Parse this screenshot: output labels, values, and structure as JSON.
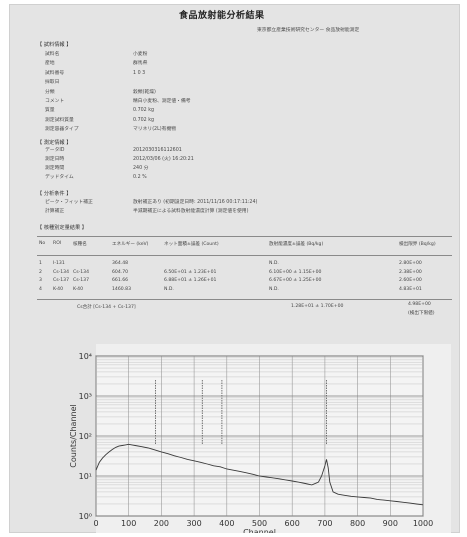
{
  "document": {
    "title": "食品放射能分析結果",
    "subtitle": "東京都立産業技術研究センター 食品放射能測定",
    "sample_section": {
      "heading": "【 試料情報 】",
      "rows": [
        {
          "key": "試料名",
          "value": "小麦粉"
        },
        {
          "key": "産地",
          "value": "群馬県"
        },
        {
          "key": "試料番号",
          "value": "1 0 3"
        },
        {
          "key": "採取日",
          "value": ""
        },
        {
          "key": "分類",
          "value": "穀類(乾燥)"
        },
        {
          "key": "コメント",
          "value": "精白小麦粉、測定値・備考"
        },
        {
          "key": "質量",
          "value": "0.702 kg"
        },
        {
          "key": "測定試料質量",
          "value": "0.702 kg"
        },
        {
          "key": "測定容器タイプ",
          "value": "マリネリ(2L)有機物"
        }
      ]
    },
    "measurement_section": {
      "heading": "【 測定情報 】",
      "rows": [
        {
          "key": "データID",
          "value": "2012030316112601"
        },
        {
          "key": "測定日時",
          "value": "2012/03/06 (火) 16:20:21"
        },
        {
          "key": "測定時間",
          "value": "240 分"
        },
        {
          "key": "デッドタイム",
          "value": "0.2 %"
        }
      ]
    },
    "analysis_section": {
      "heading": "【 分析条件 】",
      "rows": [
        {
          "key": "ピーク・フィット補正",
          "value": "放射補正あり (初期設定日時: 2011/11/16 00:17:11:24)"
        },
        {
          "key": "計算補正",
          "value": "半減期補正による試料放射能濃度計算 (測定値を使用)"
        }
      ]
    },
    "results_section": {
      "heading": "【 核種別定量結果 】",
      "headers": [
        "No",
        "ROI",
        "核種名",
        "エネルギー (keV)",
        "ネット面積±誤差 (Count)",
        "放射能濃度±誤差 (Bq/kg)",
        "検出限界 (Bq/kg)"
      ],
      "rows": [
        {
          "no": "1",
          "roi": "I-131",
          "nuclide": "",
          "energy": "364.48",
          "net": "",
          "conc": "N.D.",
          "limit": "2.80E+00"
        },
        {
          "no": "2",
          "roi": "Cs-134",
          "nuclide": "Cs-134",
          "energy": "604.70",
          "net": "6.50E+01 ± 1.23E+01",
          "conc": "6.10E+00 ± 1.15E+00",
          "limit": "2.38E+00"
        },
        {
          "no": "3",
          "roi": "Cs-137",
          "nuclide": "Cs-137",
          "energy": "661.66",
          "net": "6.88E+01 ± 1.26E+01",
          "conc": "6.67E+00 ± 1.25E+00",
          "limit": "2.60E+00"
        },
        {
          "no": "4",
          "roi": "K-40",
          "nuclide": "K-40",
          "energy": "1460.83",
          "net": "N.D.",
          "conc": "N.D.",
          "limit": "4.83E+01"
        }
      ],
      "total_label": "Cs合計 [Cs-134 + Cs-137]",
      "total_value": "1.28E+01 ± 1.70E+00",
      "total_limit": "4.98E+00",
      "total_note": "(検出下限値)"
    }
  },
  "chart_data": {
    "type": "line",
    "xlabel": "Channel",
    "ylabel": "Counts/Channel",
    "xlim": [
      0,
      1000
    ],
    "ylim": [
      1,
      10000
    ],
    "yscale": "log",
    "grid": true,
    "x_ticks": [
      "0",
      "100",
      "200",
      "300",
      "400",
      "500",
      "600",
      "700",
      "800",
      "900",
      "1000"
    ],
    "y_ticks": [
      "10⁰",
      "10¹",
      "10²",
      "10³",
      "10⁴"
    ],
    "peak_markers": [
      182,
      325,
      385,
      705
    ],
    "series": [
      {
        "x": [
          0,
          10,
          20,
          30,
          40,
          50,
          60,
          70,
          80,
          90,
          100,
          120,
          140,
          160,
          180,
          200,
          220,
          240,
          260,
          280,
          300,
          320,
          340,
          360,
          380,
          400,
          420,
          440,
          460,
          480,
          500,
          520,
          540,
          560,
          580,
          600,
          620,
          640,
          660,
          680,
          690,
          700,
          705,
          710,
          715,
          725,
          740,
          760,
          780,
          800,
          820,
          840,
          860,
          880,
          900,
          920,
          940,
          960,
          980,
          1000
        ],
        "y": [
          14,
          22,
          28,
          34,
          40,
          46,
          52,
          56,
          58,
          60,
          62,
          58,
          54,
          50,
          45,
          40,
          36,
          32,
          29,
          26,
          24,
          22,
          20,
          18,
          17,
          15,
          14,
          13,
          12,
          11,
          10,
          9.5,
          9,
          8.5,
          8,
          7.5,
          7,
          6.5,
          6,
          7,
          10,
          18,
          26,
          16,
          7,
          4,
          3.5,
          3.3,
          3.1,
          3,
          2.9,
          2.8,
          2.6,
          2.5,
          2.4,
          2.3,
          2.2,
          2.1,
          2,
          1.9
        ]
      }
    ]
  }
}
